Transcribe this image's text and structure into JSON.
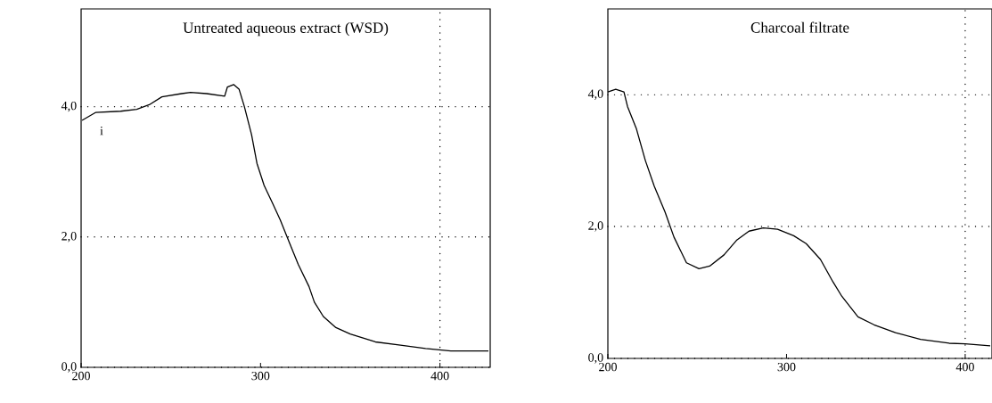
{
  "chart_data": [
    {
      "type": "line",
      "title": "Untreated aqueous extract (WSD)",
      "color": "#000000",
      "grid": "y",
      "line_style": "solid",
      "marker": "none",
      "x": [
        200.5,
        208,
        222,
        231,
        238,
        245,
        256,
        261,
        270,
        280,
        281.5,
        285,
        288,
        291,
        295,
        298,
        302,
        307,
        311,
        316,
        321,
        327,
        330,
        335,
        342,
        350,
        364,
        378,
        392,
        406,
        427
      ],
      "values": [
        3.79,
        3.91,
        3.93,
        3.96,
        4.03,
        4.15,
        4.2,
        4.22,
        4.2,
        4.16,
        4.3,
        4.34,
        4.27,
        4.0,
        3.57,
        3.13,
        2.79,
        2.5,
        2.26,
        1.92,
        1.58,
        1.24,
        1.0,
        0.78,
        0.61,
        0.51,
        0.39,
        0.34,
        0.29,
        0.25,
        0.25
      ],
      "xlim": [
        200,
        428
      ],
      "ylim": [
        0,
        5.5
      ],
      "xticks": [
        200,
        300,
        400
      ],
      "yticks": [
        {
          "value": 0,
          "label": "0,0"
        },
        {
          "value": 2,
          "label": "2,0"
        },
        {
          "value": 4,
          "label": "4,0"
        }
      ],
      "ref_lines": [
        {
          "axis": "x",
          "value": 400,
          "line_style": "dotted"
        }
      ],
      "annotations": [
        "i"
      ]
    },
    {
      "type": "line",
      "title": "Charcoal filtrate",
      "color": "#000000",
      "grid": "y",
      "line_style": "solid",
      "marker": "none",
      "x": [
        200,
        204.4,
        209,
        211,
        216,
        221,
        226,
        232,
        237,
        244,
        251,
        257,
        265,
        272,
        279,
        287,
        295,
        304,
        311,
        319,
        326,
        331,
        340,
        349,
        361,
        375,
        391,
        400,
        414
      ],
      "values": [
        4.04,
        4.08,
        4.04,
        3.82,
        3.48,
        3.0,
        2.61,
        2.22,
        1.84,
        1.45,
        1.36,
        1.4,
        1.57,
        1.79,
        1.93,
        1.98,
        1.96,
        1.86,
        1.74,
        1.5,
        1.16,
        0.94,
        0.63,
        0.51,
        0.39,
        0.29,
        0.23,
        0.22,
        0.19
      ],
      "xlim": [
        200,
        415
      ],
      "ylim": [
        0,
        5.3
      ],
      "xticks": [
        200,
        300,
        400
      ],
      "yticks": [
        {
          "value": 0,
          "label": "0,0"
        },
        {
          "value": 2,
          "label": "2,0"
        },
        {
          "value": 4,
          "label": "4,0"
        }
      ],
      "ref_lines": [
        {
          "axis": "x",
          "value": 400,
          "line_style": "dotted"
        }
      ]
    }
  ]
}
